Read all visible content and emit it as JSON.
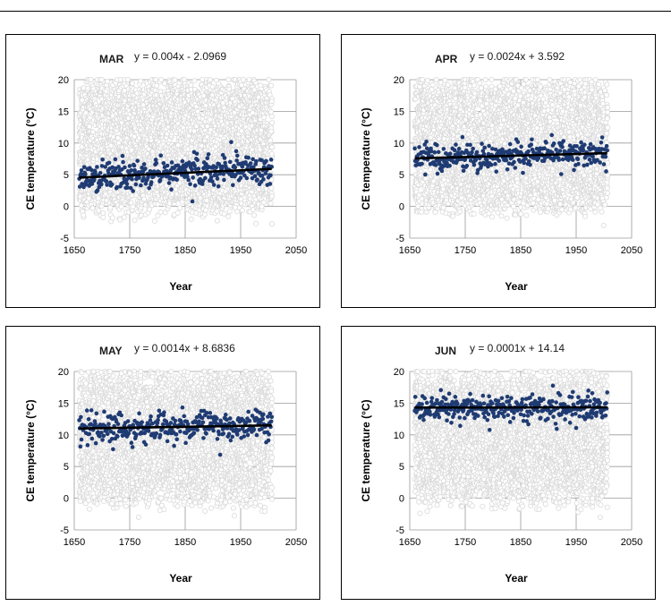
{
  "chart_data": [
    {
      "type": "scatter",
      "title": "MAR",
      "equation": "y = 0.004x - 2.0969",
      "xlabel": "Year",
      "ylabel": "CE temperature (°C)",
      "xlim": [
        1650,
        2050
      ],
      "ylim": [
        -5,
        20
      ],
      "xticks": [
        "1650",
        "1750",
        "1850",
        "1950",
        "2050"
      ],
      "yticks": [
        "-5",
        "0",
        "5",
        "10",
        "15",
        "20"
      ],
      "grid": true,
      "data_years": [
        1659,
        2006
      ],
      "trend": {
        "slope": 0.004,
        "intercept": -2.0969
      },
      "series": [
        {
          "color": "#1f3b73",
          "spread": 1.3,
          "role": "monthly mean"
        },
        {
          "color": "#dadada",
          "role": "all other months",
          "range": [
            -3,
            20
          ]
        }
      ]
    },
    {
      "type": "scatter",
      "title": "APR",
      "equation": "y = 0.0024x + 3.592",
      "xlabel": "Year",
      "ylabel": "CE temperature (°C)",
      "xlim": [
        1650,
        2050
      ],
      "ylim": [
        -5,
        20
      ],
      "xticks": [
        "1650",
        "1750",
        "1850",
        "1950",
        "2050"
      ],
      "yticks": [
        "-5",
        "0",
        "5",
        "10",
        "15",
        "20"
      ],
      "grid": true,
      "data_years": [
        1659,
        2006
      ],
      "trend": {
        "slope": 0.0024,
        "intercept": 3.592
      },
      "series": [
        {
          "color": "#1f3b73",
          "spread": 1.1,
          "role": "monthly mean"
        },
        {
          "color": "#dadada",
          "role": "all other months",
          "range": [
            -3,
            20
          ]
        }
      ]
    },
    {
      "type": "scatter",
      "title": "MAY",
      "equation": "y = 0.0014x + 8.6836",
      "xlabel": "Year",
      "ylabel": "CE temperature (°C)",
      "xlim": [
        1650,
        2050
      ],
      "ylim": [
        -5,
        20
      ],
      "xticks": [
        "1650",
        "1750",
        "1850",
        "1950",
        "2050"
      ],
      "yticks": [
        "-5",
        "0",
        "5",
        "10",
        "15",
        "20"
      ],
      "grid": true,
      "data_years": [
        1659,
        2006
      ],
      "trend": {
        "slope": 0.0014,
        "intercept": 8.6836
      },
      "series": [
        {
          "color": "#1f3b73",
          "spread": 1.1,
          "role": "monthly mean"
        },
        {
          "color": "#dadada",
          "role": "all other months",
          "range": [
            -3,
            20
          ]
        }
      ]
    },
    {
      "type": "scatter",
      "title": "JUN",
      "equation": "y = 0.0001x + 14.14",
      "xlabel": "Year",
      "ylabel": "CE temperature (°C)",
      "xlim": [
        1650,
        2050
      ],
      "ylim": [
        -5,
        20
      ],
      "xticks": [
        "1650",
        "1750",
        "1850",
        "1950",
        "2050"
      ],
      "yticks": [
        "-5",
        "0",
        "5",
        "10",
        "15",
        "20"
      ],
      "grid": true,
      "data_years": [
        1659,
        2006
      ],
      "trend": {
        "slope": 0.0001,
        "intercept": 14.14
      },
      "series": [
        {
          "color": "#1f3b73",
          "spread": 1.0,
          "role": "monthly mean"
        },
        {
          "color": "#dadada",
          "role": "all other months",
          "range": [
            -3,
            20
          ]
        }
      ]
    }
  ]
}
